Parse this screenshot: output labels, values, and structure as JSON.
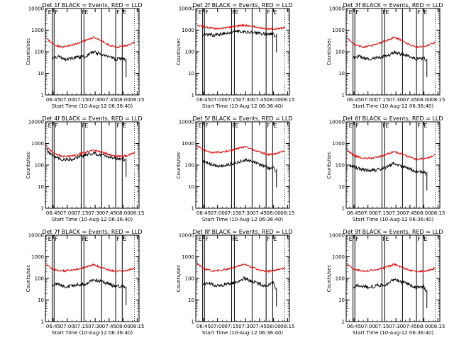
{
  "colors": {
    "events": "#000000",
    "lld": "#e00000",
    "axis": "#000000",
    "background": "#ffffff"
  },
  "common": {
    "xlabel": "Start Time (10-Aug-12 06:36:40)",
    "ylabel": "Counts/sec",
    "x_tick_labels": [
      "06:45",
      "07:00",
      "07:15",
      "07:30",
      "07:45",
      "08:00",
      "08:15"
    ],
    "y_tick_labels": [
      "1",
      "10",
      "100",
      "1000",
      "10000"
    ]
  },
  "chart_data": [
    {
      "type": "line",
      "title": "Det 1f BLACK = Events, RED = LLD",
      "xlabel": "Start Time (10-Aug-12 06:36:40)",
      "ylabel": "Counts/sec",
      "yscale": "log",
      "ylim": [
        1,
        10000
      ],
      "x_ticks": [
        "06:45",
        "07:00",
        "07:15",
        "07:30",
        "07:45",
        "08:00",
        "08:15"
      ],
      "markers": [
        {
          "time": "06:44",
          "label": "E"
        },
        {
          "time": "06:46",
          "label": "F"
        },
        {
          "time": "07:15",
          "label": "F"
        },
        {
          "time": "07:18",
          "label": "E"
        },
        {
          "time": "07:37",
          "label": ""
        },
        {
          "time": "07:52",
          "label": "F"
        },
        {
          "time": "07:59",
          "label": "E"
        }
      ],
      "series": [
        {
          "name": "Events",
          "times": [
            "06:44",
            "06:50",
            "07:00",
            "07:10",
            "07:20",
            "07:28",
            "07:35",
            "07:45",
            "07:52",
            "08:00",
            "08:02"
          ],
          "values": [
            50,
            60,
            45,
            55,
            60,
            100,
            80,
            60,
            45,
            50,
            40
          ]
        },
        {
          "name": "LLD",
          "times": [
            "06:38",
            "06:45",
            "06:55",
            "07:05",
            "07:15",
            "07:25",
            "07:28",
            "07:35",
            "07:45",
            "07:52",
            "08:00",
            "08:05",
            "08:12"
          ],
          "values": [
            400,
            220,
            160,
            200,
            280,
            400,
            470,
            350,
            200,
            160,
            180,
            200,
            280
          ]
        }
      ]
    },
    {
      "type": "line",
      "title": "Det 2f BLACK = Events, RED = LLD",
      "xlabel": "Start Time (10-Aug-12 06:36:40)",
      "ylabel": "Counts/sec",
      "yscale": "log",
      "ylim": [
        1,
        10000
      ],
      "x_ticks": [
        "06:45",
        "07:00",
        "07:15",
        "07:30",
        "07:45",
        "08:00",
        "08:15"
      ],
      "markers": [
        {
          "time": "06:44",
          "label": "E"
        },
        {
          "time": "06:46",
          "label": "F"
        },
        {
          "time": "07:15",
          "label": "F"
        },
        {
          "time": "07:18",
          "label": "E"
        },
        {
          "time": "07:37",
          "label": ""
        },
        {
          "time": "07:52",
          "label": "F"
        },
        {
          "time": "07:59",
          "label": "E"
        }
      ],
      "series": [
        {
          "name": "Events",
          "times": [
            "06:44",
            "06:55",
            "07:05",
            "07:15",
            "07:28",
            "07:40",
            "07:50",
            "08:00",
            "08:02"
          ],
          "values": [
            650,
            600,
            680,
            800,
            880,
            750,
            680,
            650,
            550
          ]
        },
        {
          "name": "LLD",
          "times": [
            "06:38",
            "06:50",
            "07:00",
            "07:10",
            "07:20",
            "07:28",
            "07:40",
            "07:50",
            "08:00",
            "08:12"
          ],
          "values": [
            1700,
            1300,
            1150,
            1300,
            1500,
            1700,
            1400,
            1150,
            1100,
            1300
          ]
        }
      ]
    },
    {
      "type": "line",
      "title": "Det 3f BLACK = Events, RED = LLD",
      "xlabel": "Start Time (10-Aug-12 06:36:40)",
      "ylabel": "Counts/sec",
      "yscale": "log",
      "ylim": [
        1,
        10000
      ],
      "x_ticks": [
        "06:45",
        "07:00",
        "07:15",
        "07:30",
        "07:45",
        "08:00",
        "08:15"
      ],
      "markers": [
        {
          "time": "06:44",
          "label": "E"
        },
        {
          "time": "06:46",
          "label": "F"
        },
        {
          "time": "07:15",
          "label": "F"
        },
        {
          "time": "07:18",
          "label": "E"
        },
        {
          "time": "07:37",
          "label": ""
        },
        {
          "time": "07:52",
          "label": "F"
        },
        {
          "time": "07:59",
          "label": "E"
        }
      ],
      "series": [
        {
          "name": "Events",
          "times": [
            "06:44",
            "06:50",
            "07:00",
            "07:10",
            "07:20",
            "07:28",
            "07:35",
            "07:45",
            "07:52",
            "08:00",
            "08:02"
          ],
          "values": [
            50,
            60,
            45,
            55,
            60,
            100,
            80,
            60,
            45,
            50,
            40
          ]
        },
        {
          "name": "LLD",
          "times": [
            "06:38",
            "06:45",
            "06:55",
            "07:05",
            "07:15",
            "07:25",
            "07:28",
            "07:35",
            "07:45",
            "07:52",
            "08:00",
            "08:05",
            "08:12"
          ],
          "values": [
            400,
            220,
            160,
            200,
            280,
            400,
            470,
            350,
            200,
            160,
            180,
            200,
            280
          ]
        }
      ]
    },
    {
      "type": "line",
      "title": "Det 4f BLACK = Events, RED = LLD",
      "xlabel": "Start Time (10-Aug-12 06:36:40)",
      "ylabel": "Counts/sec",
      "yscale": "log",
      "ylim": [
        1,
        10000
      ],
      "x_ticks": [
        "06:45",
        "07:00",
        "07:15",
        "07:30",
        "07:45",
        "08:00",
        "08:15"
      ],
      "markers": [
        {
          "time": "06:44",
          "label": "E"
        },
        {
          "time": "06:46",
          "label": "F"
        },
        {
          "time": "07:15",
          "label": "F"
        },
        {
          "time": "07:18",
          "label": "E"
        },
        {
          "time": "07:37",
          "label": ""
        },
        {
          "time": "07:52",
          "label": "F"
        },
        {
          "time": "07:59",
          "label": "E"
        }
      ],
      "series": [
        {
          "name": "Events",
          "times": [
            "06:38",
            "06:45",
            "06:55",
            "07:05",
            "07:15",
            "07:25",
            "07:30",
            "07:40",
            "07:50",
            "08:00",
            "08:02"
          ],
          "values": [
            500,
            250,
            180,
            190,
            250,
            330,
            340,
            270,
            200,
            190,
            170
          ]
        },
        {
          "name": "LLD",
          "times": [
            "06:38",
            "06:45",
            "06:55",
            "07:05",
            "07:15",
            "07:25",
            "07:30",
            "07:40",
            "07:50",
            "08:00",
            "08:05",
            "08:12"
          ],
          "values": [
            700,
            350,
            250,
            260,
            340,
            460,
            470,
            360,
            270,
            250,
            280,
            380
          ]
        }
      ]
    },
    {
      "type": "line",
      "title": "Det 5f BLACK = Events, RED = LLD",
      "xlabel": "Start Time (10-Aug-12 06:36:40)",
      "ylabel": "Counts/sec",
      "yscale": "log",
      "ylim": [
        1,
        10000
      ],
      "x_ticks": [
        "06:45",
        "07:00",
        "07:15",
        "07:30",
        "07:45",
        "08:00",
        "08:15"
      ],
      "markers": [
        {
          "time": "06:44",
          "label": "E"
        },
        {
          "time": "06:46",
          "label": "F"
        },
        {
          "time": "07:15",
          "label": "F"
        },
        {
          "time": "07:18",
          "label": "E"
        },
        {
          "time": "07:37",
          "label": ""
        },
        {
          "time": "07:52",
          "label": "F"
        },
        {
          "time": "07:59",
          "label": "E"
        }
      ],
      "series": [
        {
          "name": "Events",
          "times": [
            "06:44",
            "06:50",
            "07:00",
            "07:10",
            "07:20",
            "07:30",
            "07:40",
            "07:50",
            "07:55",
            "08:00",
            "08:02"
          ],
          "values": [
            150,
            120,
            90,
            100,
            130,
            180,
            130,
            90,
            70,
            75,
            55
          ]
        },
        {
          "name": "LLD",
          "times": [
            "06:38",
            "06:45",
            "06:55",
            "07:05",
            "07:15",
            "07:25",
            "07:30",
            "07:40",
            "07:50",
            "07:55",
            "08:00",
            "08:12"
          ],
          "values": [
            800,
            500,
            380,
            400,
            480,
            650,
            680,
            480,
            350,
            300,
            320,
            450
          ]
        }
      ]
    },
    {
      "type": "line",
      "title": "Det 6f BLACK = Events, RED = LLD",
      "xlabel": "Start Time (10-Aug-12 06:36:40)",
      "ylabel": "Counts/sec",
      "yscale": "log",
      "ylim": [
        1,
        10000
      ],
      "x_ticks": [
        "06:45",
        "07:00",
        "07:15",
        "07:30",
        "07:45",
        "08:00",
        "08:15"
      ],
      "markers": [
        {
          "time": "06:44",
          "label": "E"
        },
        {
          "time": "06:46",
          "label": "F"
        },
        {
          "time": "07:15",
          "label": "F"
        },
        {
          "time": "07:18",
          "label": "E"
        },
        {
          "time": "07:37",
          "label": ""
        },
        {
          "time": "07:52",
          "label": "F"
        },
        {
          "time": "07:59",
          "label": "E"
        }
      ],
      "series": [
        {
          "name": "Events",
          "times": [
            "06:40",
            "06:50",
            "07:00",
            "07:10",
            "07:20",
            "07:28",
            "07:35",
            "07:45",
            "07:52",
            "08:00",
            "08:02"
          ],
          "values": [
            100,
            70,
            55,
            60,
            80,
            120,
            95,
            65,
            50,
            50,
            40
          ]
        },
        {
          "name": "LLD",
          "times": [
            "06:38",
            "06:45",
            "06:55",
            "07:05",
            "07:15",
            "07:25",
            "07:28",
            "07:35",
            "07:45",
            "07:52",
            "08:00",
            "08:05",
            "08:12"
          ],
          "values": [
            450,
            280,
            200,
            210,
            260,
            380,
            420,
            330,
            230,
            180,
            200,
            220,
            300
          ]
        }
      ]
    },
    {
      "type": "line",
      "title": "Det 7f BLACK = Events, RED = LLD",
      "xlabel": "Start Time (10-Aug-12 06:36:40)",
      "ylabel": "Counts/sec",
      "yscale": "log",
      "ylim": [
        1,
        10000
      ],
      "x_ticks": [
        "06:45",
        "07:00",
        "07:15",
        "07:30",
        "07:45",
        "08:00",
        "08:15"
      ],
      "markers": [
        {
          "time": "06:44",
          "label": "E"
        },
        {
          "time": "06:46",
          "label": "F"
        },
        {
          "time": "07:15",
          "label": "F"
        },
        {
          "time": "07:18",
          "label": "E"
        },
        {
          "time": "07:37",
          "label": ""
        },
        {
          "time": "07:52",
          "label": "F"
        },
        {
          "time": "07:59",
          "label": "E"
        }
      ],
      "series": [
        {
          "name": "Events",
          "times": [
            "06:44",
            "06:50",
            "07:00",
            "07:10",
            "07:20",
            "07:28",
            "07:35",
            "07:45",
            "07:52",
            "08:00",
            "08:02"
          ],
          "values": [
            45,
            55,
            40,
            50,
            55,
            90,
            75,
            55,
            40,
            45,
            35
          ]
        },
        {
          "name": "LLD",
          "times": [
            "06:38",
            "06:45",
            "06:55",
            "07:05",
            "07:15",
            "07:25",
            "07:28",
            "07:35",
            "07:45",
            "07:52",
            "08:00",
            "08:05",
            "08:12"
          ],
          "values": [
            420,
            260,
            220,
            240,
            290,
            390,
            430,
            340,
            240,
            210,
            220,
            240,
            300
          ]
        }
      ]
    },
    {
      "type": "line",
      "title": "Det 8f BLACK = Events, RED = LLD",
      "xlabel": "Start Time (10-Aug-12 06:36:40)",
      "ylabel": "Counts/sec",
      "yscale": "log",
      "ylim": [
        1,
        10000
      ],
      "x_ticks": [
        "06:45",
        "07:00",
        "07:15",
        "07:30",
        "07:45",
        "08:00",
        "08:15"
      ],
      "markers": [
        {
          "time": "06:44",
          "label": "E"
        },
        {
          "time": "06:46",
          "label": "F"
        },
        {
          "time": "07:15",
          "label": "F"
        },
        {
          "time": "07:18",
          "label": "E"
        },
        {
          "time": "07:37",
          "label": ""
        },
        {
          "time": "07:52",
          "label": "F"
        },
        {
          "time": "07:59",
          "label": "E"
        }
      ],
      "series": [
        {
          "name": "Events",
          "times": [
            "06:44",
            "06:50",
            "07:00",
            "07:10",
            "07:20",
            "07:28",
            "07:35",
            "07:45",
            "07:52",
            "08:00",
            "08:02"
          ],
          "values": [
            55,
            60,
            45,
            55,
            65,
            100,
            80,
            55,
            45,
            60,
            30
          ]
        },
        {
          "name": "LLD",
          "times": [
            "06:38",
            "06:45",
            "06:55",
            "07:05",
            "07:15",
            "07:25",
            "07:28",
            "07:35",
            "07:45",
            "07:52",
            "08:00",
            "08:05",
            "08:12"
          ],
          "values": [
            480,
            280,
            220,
            240,
            300,
            420,
            460,
            350,
            240,
            210,
            230,
            250,
            300
          ]
        }
      ]
    },
    {
      "type": "line",
      "title": "Det 9f BLACK = Events, RED = LLD",
      "xlabel": "Start Time (10-Aug-12 06:36:40)",
      "ylabel": "Counts/sec",
      "yscale": "log",
      "ylim": [
        1,
        10000
      ],
      "x_ticks": [
        "06:45",
        "07:00",
        "07:15",
        "07:30",
        "07:45",
        "08:00",
        "08:15"
      ],
      "markers": [
        {
          "time": "06:44",
          "label": "E"
        },
        {
          "time": "06:46",
          "label": "F"
        },
        {
          "time": "07:15",
          "label": "F"
        },
        {
          "time": "07:18",
          "label": "E"
        },
        {
          "time": "07:37",
          "label": ""
        },
        {
          "time": "07:52",
          "label": "F"
        },
        {
          "time": "07:59",
          "label": "E"
        }
      ],
      "series": [
        {
          "name": "Events",
          "times": [
            "06:44",
            "06:50",
            "07:00",
            "07:10",
            "07:20",
            "07:28",
            "07:35",
            "07:45",
            "07:52",
            "08:00",
            "08:02"
          ],
          "values": [
            40,
            50,
            38,
            45,
            55,
            90,
            70,
            50,
            38,
            40,
            25
          ]
        },
        {
          "name": "LLD",
          "times": [
            "06:38",
            "06:45",
            "06:55",
            "07:05",
            "07:15",
            "07:25",
            "07:28",
            "07:35",
            "07:45",
            "07:52",
            "08:00",
            "08:05",
            "08:12"
          ],
          "values": [
            450,
            270,
            220,
            240,
            290,
            400,
            440,
            340,
            240,
            210,
            220,
            240,
            290
          ]
        }
      ]
    }
  ]
}
